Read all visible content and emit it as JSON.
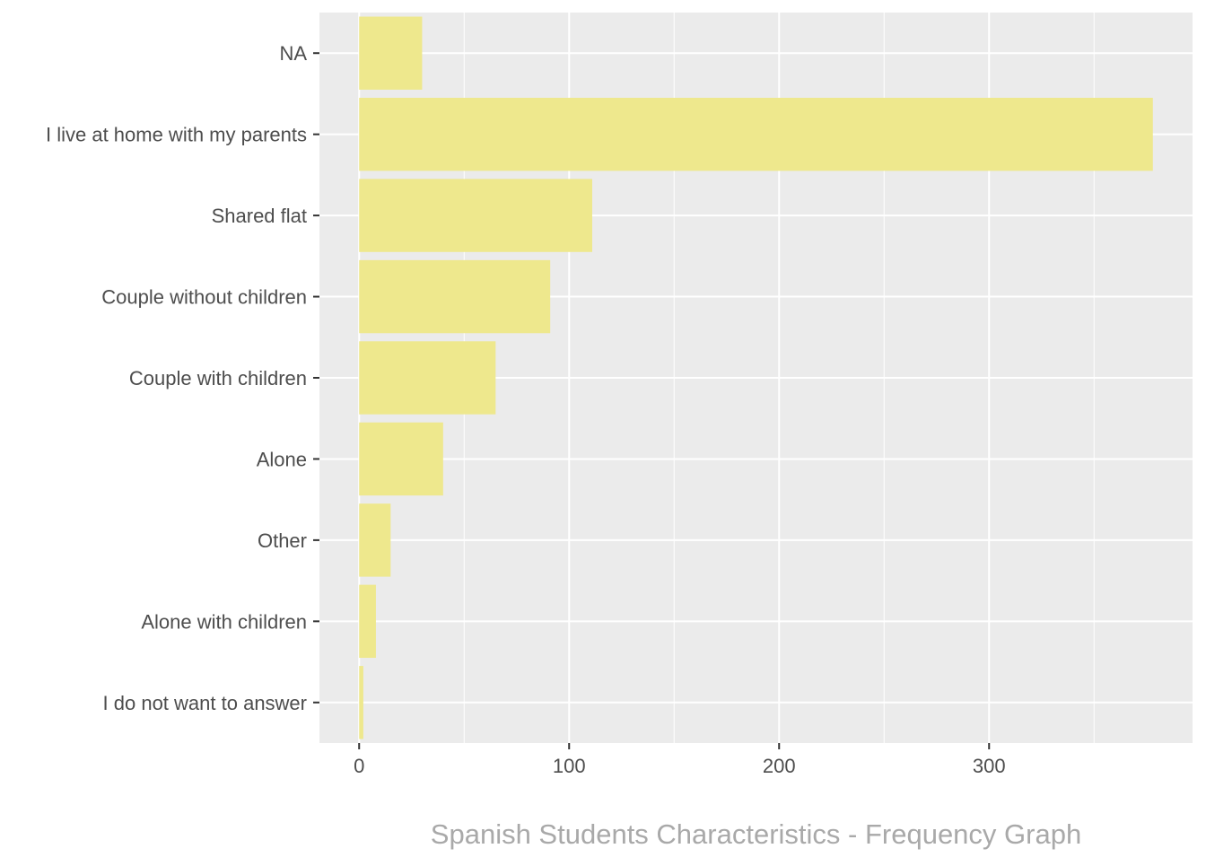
{
  "chart_data": {
    "type": "bar",
    "orientation": "horizontal",
    "categories": [
      "NA",
      "I live at home with my parents",
      "Shared flat",
      "Couple without children",
      "Couple with children",
      "Alone",
      "Other",
      "Alone with children",
      "I do not want to answer"
    ],
    "values": [
      30,
      378,
      111,
      91,
      65,
      40,
      15,
      8,
      2
    ],
    "title": "Spanish Students Characteristics - Frequency Graph",
    "xlabel": "",
    "ylabel": "",
    "xlim": [
      -18.9,
      396.9
    ],
    "xticks": [
      0,
      100,
      200,
      300
    ],
    "grid": true,
    "legend": "none",
    "colors": {
      "bar": "#eee88d",
      "panel": "#ebebeb",
      "grid_major": "#ffffff",
      "tick_text": "#4d4d4d",
      "title": "#a9a9a9"
    }
  }
}
